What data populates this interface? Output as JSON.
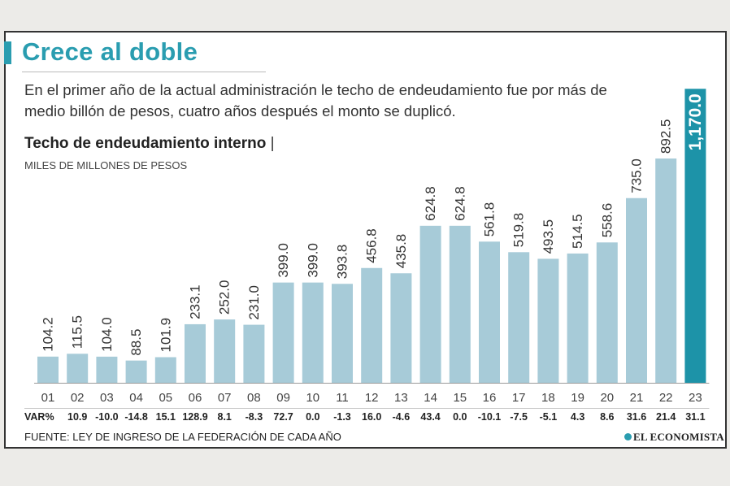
{
  "header": {
    "title": "Crece al doble",
    "subtitle": "En el primer año de la actual administración le techo de endeudamiento fue por más de medio billón de pesos, cuatro años después el monto se duplicó.",
    "section_title": "Techo de endeudamiento interno",
    "section_pipe": "|",
    "unit": "MILES DE MILLONES DE PESOS"
  },
  "chart_data": {
    "type": "bar",
    "categories": [
      "01",
      "02",
      "03",
      "04",
      "05",
      "06",
      "07",
      "08",
      "09",
      "10",
      "11",
      "12",
      "13",
      "14",
      "15",
      "16",
      "17",
      "18",
      "19",
      "20",
      "21",
      "22",
      "23"
    ],
    "values": [
      104.2,
      115.5,
      104.0,
      88.5,
      101.9,
      233.1,
      252.0,
      231.0,
      399.0,
      399.0,
      393.8,
      456.8,
      435.8,
      624.8,
      624.8,
      561.8,
      519.8,
      493.5,
      514.5,
      558.6,
      735.0,
      892.5,
      1170.0
    ],
    "value_labels": [
      "104.2",
      "115.5",
      "104.0",
      "88.5",
      "101.9",
      "233.1",
      "252.0",
      "231.0",
      "399.0",
      "399.0",
      "393.8",
      "456.8",
      "435.8",
      "624.8",
      "624.8",
      "561.8",
      "519.8",
      "493.5",
      "514.5",
      "558.6",
      "735.0",
      "892.5",
      "1,170.0"
    ],
    "var_label": "VAR%",
    "var_values": [
      "10.9",
      "-10.0",
      "-14.8",
      "15.1",
      "128.9",
      "8.1",
      "-8.3",
      "72.7",
      "0.0",
      "-1.3",
      "16.0",
      "-4.6",
      "43.4",
      "0.0",
      "-10.1",
      "-7.5",
      "-5.1",
      "4.3",
      "8.6",
      "31.6",
      "21.4",
      "31.1"
    ],
    "ylim": [
      0,
      1200
    ],
    "colors": {
      "bar": "#a7cbd8",
      "highlight": "#1d93a8",
      "highlight_text": "#ffffff"
    },
    "highlight_index": 22
  },
  "footer": {
    "source": "FUENTE: LEY DE INGRESO DE LA FEDERACIÓN DE CADA AÑO",
    "brand": "EL ECONOMISTA"
  }
}
